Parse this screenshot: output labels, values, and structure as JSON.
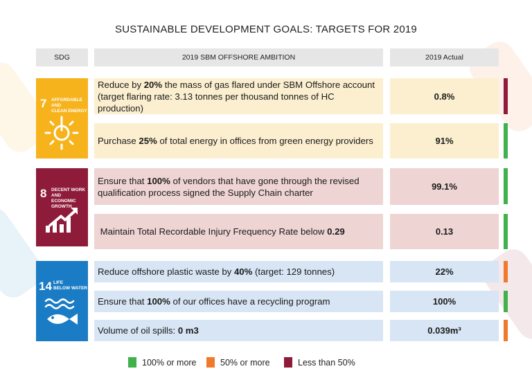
{
  "title": "SUSTAINABLE DEVELOPMENT GOALS: TARGETS FOR 2019",
  "headers": {
    "sdg": "SDG",
    "ambition": "2019 SBM OFFSHORE AMBITION",
    "actual": "2019 Actual"
  },
  "sdgs": [
    {
      "number": "7",
      "label_line1": "AFFORDABLE AND",
      "label_line2": "CLEAN ENERGY",
      "color": "#f6b31c",
      "icon": "sun-power-icon"
    },
    {
      "number": "8",
      "label_line1": "DECENT WORK AND",
      "label_line2": "ECONOMIC GROWTH",
      "color": "#8f1b3a",
      "icon": "growth-chart-icon"
    },
    {
      "number": "14",
      "label_line1": "LIFE",
      "label_line2": "BELOW WATER",
      "color": "#1a7cc4",
      "icon": "fish-waves-icon"
    }
  ],
  "rows": [
    {
      "pre": "Reduce by ",
      "bold": "20%",
      "post": " the mass of gas flared under SBM Offshore account (target flaring rate: 3.13 tonnes per thousand tonnes of HC production)",
      "actual": "0.8%",
      "status": "less-than-50",
      "status_color": "#8f1b3a",
      "bg": "#fcefd0"
    },
    {
      "pre": "Purchase ",
      "bold": "25%",
      "post": " of total energy in offices from green energy providers",
      "actual": "91%",
      "status": "100-or-more",
      "status_color": "#3fb24c",
      "bg": "#fcefd0"
    },
    {
      "pre": "Ensure that ",
      "bold": "100%",
      "post": " of vendors that have gone through the revised qualification process signed the Supply Chain charter",
      "actual": "99.1%",
      "status": "100-or-more",
      "status_color": "#3fb24c",
      "bg": "#eed4d3"
    },
    {
      "pre": " Maintain Total Recordable Injury Frequency Rate below ",
      "bold": "0.29",
      "post": "",
      "actual": "0.13",
      "status": "100-or-more",
      "status_color": "#3fb24c",
      "bg": "#eed4d3"
    },
    {
      "pre": "Reduce offshore plastic waste by ",
      "bold": "40%",
      "post": " (target: 129 tonnes)",
      "actual": "22%",
      "status": "50-or-more",
      "status_color": "#f07a2b",
      "bg": "#d7e5f4"
    },
    {
      "pre": "Ensure that ",
      "bold": "100%",
      "post": " of our offices have a recycling program",
      "actual": "100%",
      "status": "100-or-more",
      "status_color": "#3fb24c",
      "bg": "#d7e5f4"
    },
    {
      "pre": "Volume of oil spills: ",
      "bold": "0 m3",
      "post": "",
      "actual": "0.039m³",
      "status": "50-or-more",
      "status_color": "#f07a2b",
      "bg": "#d7e5f4"
    }
  ],
  "legend": [
    {
      "label": "100% or more",
      "color": "#3fb24c"
    },
    {
      "label": "50% or more",
      "color": "#f07a2b"
    },
    {
      "label": "Less than 50%",
      "color": "#8f1b3a"
    }
  ]
}
